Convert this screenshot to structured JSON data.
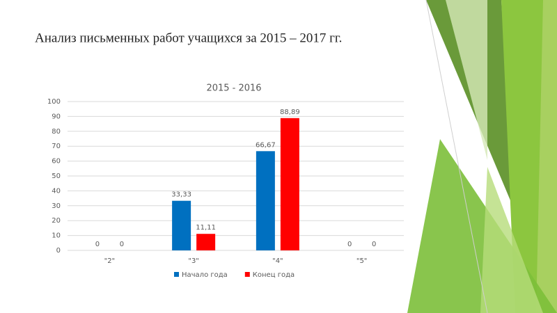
{
  "slide": {
    "title": "Анализ письменных работ учащихся за 2015 – 2017 гг."
  },
  "chart_data": {
    "type": "bar",
    "title": "2015 - 2016",
    "categories": [
      "\"2\"",
      "\"3\"",
      "\"4\"",
      "\"5\""
    ],
    "series": [
      {
        "name": "Начало года",
        "color": "#0070c0",
        "values": [
          0,
          33.33,
          66.67,
          0
        ],
        "value_labels": [
          "0",
          "33,33",
          "66,67",
          "0"
        ]
      },
      {
        "name": "Конец года",
        "color": "#ff0000",
        "values": [
          0,
          11.11,
          88.89,
          0
        ],
        "value_labels": [
          "0",
          "11,11",
          "88,89",
          "0"
        ]
      }
    ],
    "ylim": [
      0,
      100
    ],
    "yticks": [
      0,
      10,
      20,
      30,
      40,
      50,
      60,
      70,
      80,
      90,
      100
    ],
    "grid": true,
    "legend": "bottom"
  }
}
